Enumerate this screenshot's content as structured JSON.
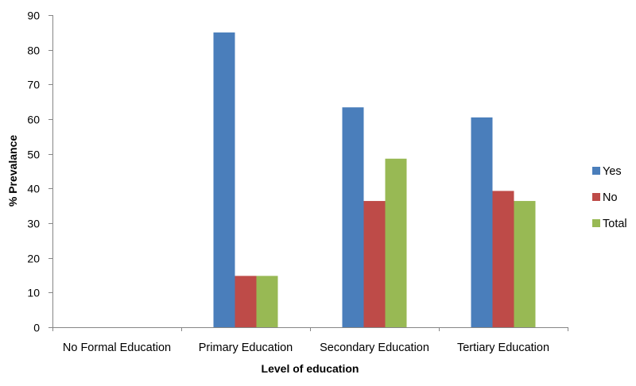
{
  "chart_data": {
    "type": "bar",
    "title": "",
    "xlabel": "Level of education",
    "ylabel": "% Prevalance",
    "ylim": [
      0,
      90
    ],
    "yticks": [
      0,
      10,
      20,
      30,
      40,
      50,
      60,
      70,
      80,
      90
    ],
    "categories": [
      "No Formal Education",
      "Primary Education",
      "Secondary Education",
      "Tertiary Education"
    ],
    "series": [
      {
        "name": "Yes",
        "color": "#4a7ebb",
        "values": [
          0,
          85,
          63.4,
          60.5
        ]
      },
      {
        "name": "No",
        "color": "#be4b48",
        "values": [
          0,
          14.8,
          36.4,
          39.3
        ]
      },
      {
        "name": "Total",
        "color": "#98b954",
        "values": [
          0,
          14.8,
          48.6,
          36.4
        ]
      }
    ],
    "legend_position": "right",
    "grid": false
  }
}
